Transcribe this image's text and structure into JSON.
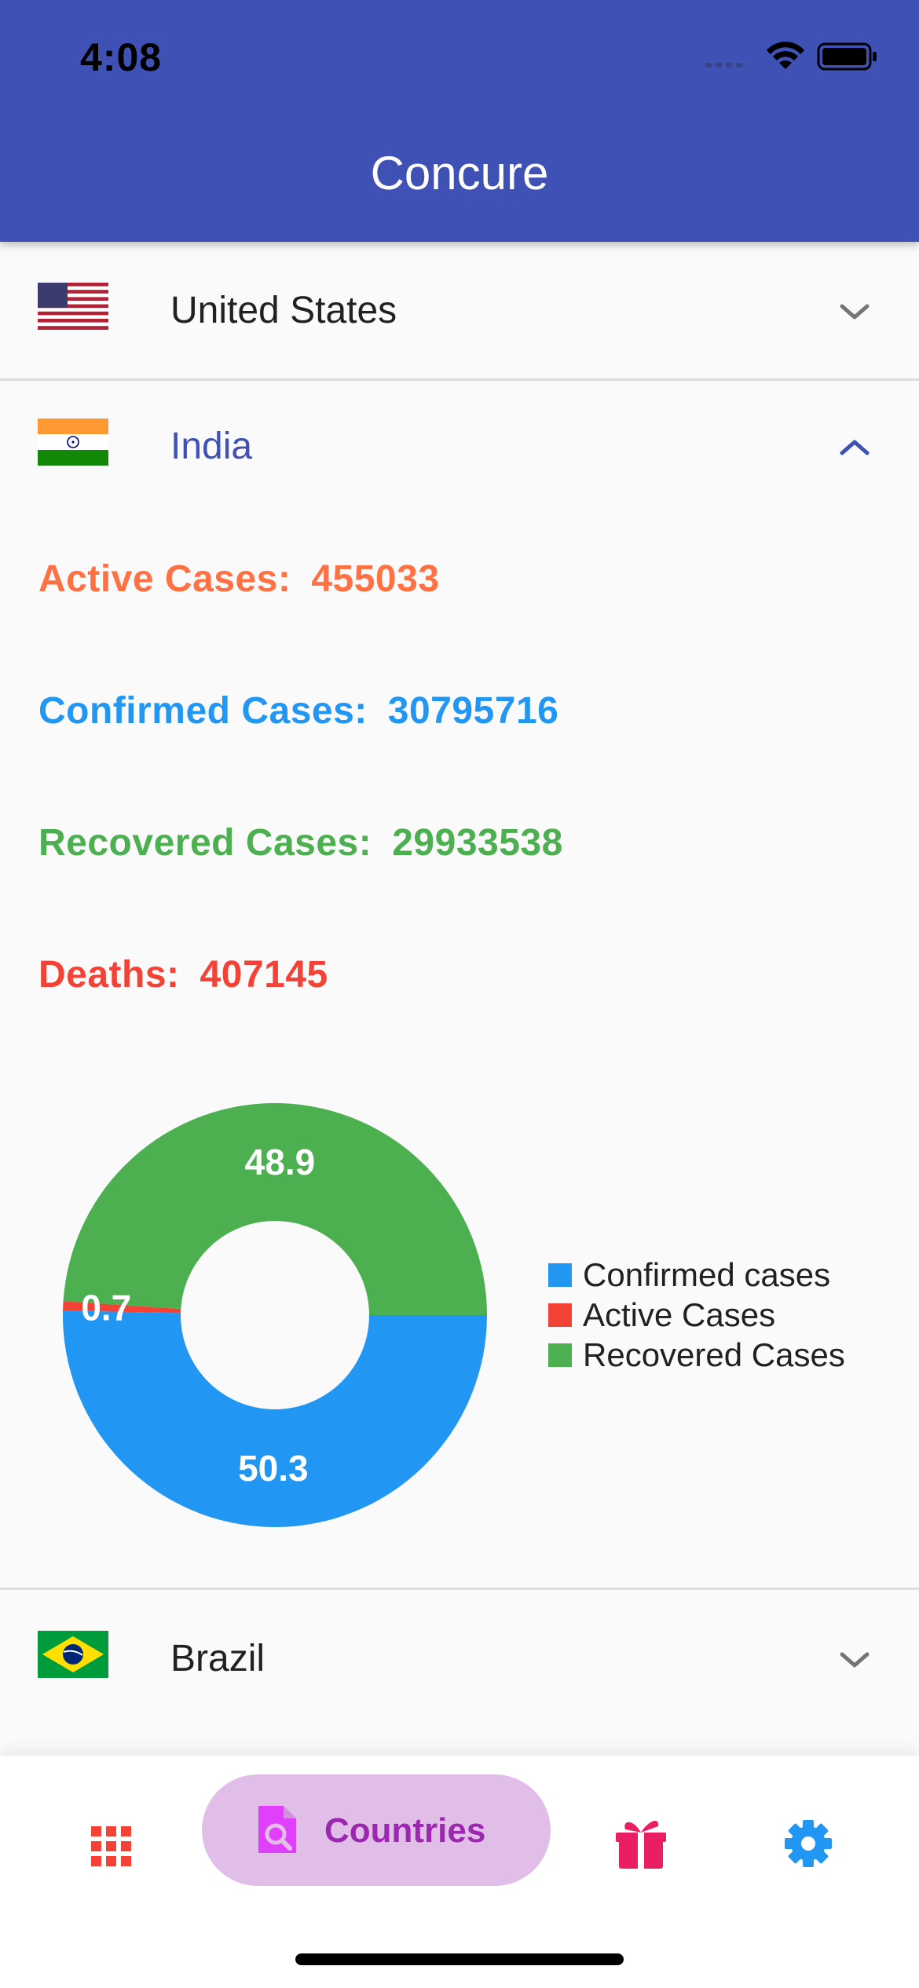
{
  "status_bar": {
    "time": "4:08"
  },
  "app": {
    "title": "Concure"
  },
  "countries": [
    {
      "name": "United States",
      "expanded": false,
      "flag_icon": "us-flag-icon"
    },
    {
      "name": "India",
      "expanded": true,
      "flag_icon": "india-flag-icon"
    },
    {
      "name": "Brazil",
      "expanded": false,
      "flag_icon": "brazil-flag-icon"
    }
  ],
  "india_stats": {
    "active": {
      "label": "Active Cases:",
      "value": "455033",
      "color": "#ff7043"
    },
    "confirmed": {
      "label": "Confirmed Cases:",
      "value": "30795716",
      "color": "#2196f3"
    },
    "recovered": {
      "label": "Recovered Cases:",
      "value": "29933538",
      "color": "#4caf50"
    },
    "deaths": {
      "label": "Deaths:",
      "value": "407145",
      "color": "#f44336"
    }
  },
  "chart_data": {
    "type": "pie",
    "variant": "donut",
    "categories": [
      "Confirmed cases",
      "Active Cases",
      "Recovered Cases"
    ],
    "values": [
      50.3,
      0.7,
      48.9
    ],
    "data_labels": [
      "50.3",
      "0.7",
      "48.9"
    ],
    "colors": [
      "#2196f3",
      "#f44336",
      "#4caf50"
    ],
    "legend_position": "right"
  },
  "bottom_nav": {
    "items": [
      {
        "icon": "grid-icon",
        "label": "",
        "active": false,
        "color": "#f44336"
      },
      {
        "icon": "document-search-icon",
        "label": "Countries",
        "active": true,
        "color": "#9c27b0"
      },
      {
        "icon": "gift-icon",
        "label": "",
        "active": false,
        "color": "#e91e63"
      },
      {
        "icon": "gear-icon",
        "label": "",
        "active": false,
        "color": "#2196f3"
      }
    ]
  },
  "colors": {
    "app_bar": "#3f51b5",
    "expanded_tile_text": "#3f51b5",
    "background": "#fafafa"
  }
}
